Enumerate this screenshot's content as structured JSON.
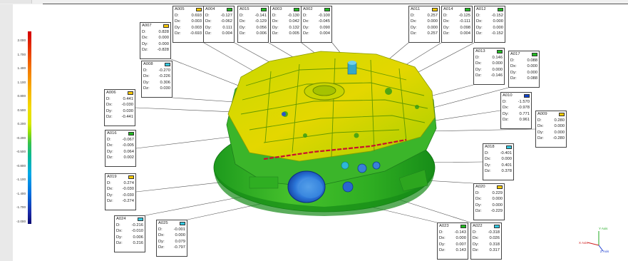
{
  "color_scale": {
    "ticks": [
      "2.000",
      "1.700",
      "1.400",
      "1.100",
      "0.800",
      "0.500",
      "0.200",
      "-0.200",
      "-0.500",
      "-0.800",
      "-1.100",
      "-1.400",
      "-1.700",
      "-2.000"
    ],
    "colors": [
      "#d40000",
      "#f47a00",
      "#f7b000",
      "#f2dc00",
      "#9be000",
      "#38c24a",
      "#00b7a0",
      "#00a8e8",
      "#0070e0",
      "#1b2aa8"
    ]
  },
  "callouts": [
    {
      "id": "A005",
      "color": "#f7c800",
      "rows": [
        [
          "D:",
          "0.693"
        ],
        [
          "Dx:",
          "0.003"
        ],
        [
          "Dy:",
          "0.003"
        ],
        [
          "Dz:",
          "-0.693"
        ]
      ]
    },
    {
      "id": "A004",
      "color": "#22bb22",
      "rows": [
        [
          "D:",
          "-0.127"
        ],
        [
          "Dx:",
          "-0.062"
        ],
        [
          "Dy:",
          "0.111"
        ],
        [
          "Dz:",
          "0.004"
        ]
      ]
    },
    {
      "id": "A015",
      "color": "#22bb22",
      "rows": [
        [
          "D:",
          "-0.141"
        ],
        [
          "Dx:",
          "-0.129"
        ],
        [
          "Dy:",
          "0.056"
        ],
        [
          "Dz:",
          "0.006"
        ]
      ]
    },
    {
      "id": "A003",
      "color": "#22bb22",
      "rows": [
        [
          "D:",
          "-0.130"
        ],
        [
          "Dx:",
          "0.042"
        ],
        [
          "Dy:",
          "0.132"
        ],
        [
          "Dz:",
          "0.005"
        ]
      ]
    },
    {
      "id": "A002",
      "color": "#22bb22",
      "rows": [
        [
          "D:",
          "-0.100"
        ],
        [
          "Dx:",
          "-0.045"
        ],
        [
          "Dy:",
          "0.090"
        ],
        [
          "Dz:",
          "0.004"
        ]
      ]
    },
    {
      "id": "A011",
      "color": "#f7c800",
      "rows": [
        [
          "D:",
          "0.257"
        ],
        [
          "Dx:",
          "0.000"
        ],
        [
          "Dy:",
          "0.000"
        ],
        [
          "Dz:",
          "0.257"
        ]
      ]
    },
    {
      "id": "A014",
      "color": "#22bb22",
      "rows": [
        [
          "D:",
          "-0.125"
        ],
        [
          "Dx:",
          "-0.111"
        ],
        [
          "Dy:",
          "0.098"
        ],
        [
          "Dz:",
          "0.004"
        ]
      ]
    },
    {
      "id": "A012",
      "color": "#22bb22",
      "rows": [
        [
          "D:",
          "-0.152"
        ],
        [
          "Dx:",
          "0.000"
        ],
        [
          "Dy:",
          "0.000"
        ],
        [
          "Dz:",
          "-0.152"
        ]
      ]
    },
    {
      "id": "A007",
      "color": "#f7c800",
      "rows": [
        [
          "D:",
          "0.828"
        ],
        [
          "Dx:",
          "0.000"
        ],
        [
          "Dy:",
          "0.000"
        ],
        [
          "Dz:",
          "-0.828"
        ]
      ]
    },
    {
      "id": "A008",
      "color": "#33c8e0",
      "rows": [
        [
          "D:",
          "-0.270"
        ],
        [
          "Dx:",
          "-0.226"
        ],
        [
          "Dy:",
          "0.306"
        ],
        [
          "Dz:",
          "0.030"
        ]
      ]
    },
    {
      "id": "A013",
      "color": "#22bb22",
      "rows": [
        [
          "D:",
          "0.146"
        ],
        [
          "Dx:",
          "0.000"
        ],
        [
          "Dy:",
          "0.000"
        ],
        [
          "Dz:",
          "-0.146"
        ]
      ]
    },
    {
      "id": "A017",
      "color": "#22bb22",
      "rows": [
        [
          "D:",
          "0.088"
        ],
        [
          "Dx:",
          "0.000"
        ],
        [
          "Dy:",
          "0.000"
        ],
        [
          "Dz:",
          "0.088"
        ]
      ]
    },
    {
      "id": "A006",
      "color": "#f7c800",
      "rows": [
        [
          "D:",
          "0.441"
        ],
        [
          "Dx:",
          "-0.030"
        ],
        [
          "Dy:",
          "0.030"
        ],
        [
          "Dz:",
          "-0.441"
        ]
      ]
    },
    {
      "id": "A010",
      "color": "#1144cc",
      "rows": [
        [
          "D:",
          "-1.570"
        ],
        [
          "Dx:",
          "-0.978"
        ],
        [
          "Dy:",
          "0.771"
        ],
        [
          "Dz:",
          "0.961"
        ]
      ]
    },
    {
      "id": "A009",
      "color": "#f7c800",
      "rows": [
        [
          "D:",
          "0.280"
        ],
        [
          "Dx:",
          "0.000"
        ],
        [
          "Dy:",
          "0.000"
        ],
        [
          "Dz:",
          "-0.280"
        ]
      ]
    },
    {
      "id": "A016",
      "color": "#22bb22",
      "rows": [
        [
          "D:",
          "-0.067"
        ],
        [
          "Dx:",
          "-0.005"
        ],
        [
          "Dy:",
          "0.064"
        ],
        [
          "Dz:",
          "0.002"
        ]
      ]
    },
    {
      "id": "A018",
      "color": "#33c8e0",
      "rows": [
        [
          "D:",
          "-0.401"
        ],
        [
          "Dx:",
          "0.000"
        ],
        [
          "Dy:",
          "0.401"
        ],
        [
          "Dz:",
          "0.378"
        ]
      ]
    },
    {
      "id": "A019",
      "color": "#f7c800",
      "rows": [
        [
          "D:",
          "0.274"
        ],
        [
          "Dx:",
          "-0.030"
        ],
        [
          "Dy:",
          "-0.030"
        ],
        [
          "Dz:",
          "-0.274"
        ]
      ]
    },
    {
      "id": "A020",
      "color": "#f7c800",
      "rows": [
        [
          "D:",
          "0.229"
        ],
        [
          "Dx:",
          "0.000"
        ],
        [
          "Dy:",
          "0.000"
        ],
        [
          "Dz:",
          "-0.229"
        ]
      ]
    },
    {
      "id": "A024",
      "color": "#33c8e0",
      "rows": [
        [
          "D:",
          "-0.216"
        ],
        [
          "Dx:",
          "-0.010"
        ],
        [
          "Dy:",
          "0.006"
        ],
        [
          "Dz:",
          "0.216"
        ]
      ]
    },
    {
      "id": "A025",
      "color": "#33c8e0",
      "rows": [
        [
          "D:",
          "-0.001"
        ],
        [
          "Dx:",
          "0.000"
        ],
        [
          "Dy:",
          "0.079"
        ],
        [
          "Dz:",
          "-0.797"
        ]
      ]
    },
    {
      "id": "A023",
      "color": "#22bb22",
      "rows": [
        [
          "D:",
          "-0.143"
        ],
        [
          "Dx:",
          "0.000"
        ],
        [
          "Dy:",
          "0.007"
        ],
        [
          "Dz:",
          "0.143"
        ]
      ]
    },
    {
      "id": "A022",
      "color": "#33c8e0",
      "rows": [
        [
          "D:",
          "-0.318"
        ],
        [
          "Dx:",
          "0.026"
        ],
        [
          "Dy:",
          "0.318"
        ],
        [
          "Dz:",
          "0.317"
        ]
      ]
    }
  ],
  "triad": {
    "y": "Y Axis",
    "x": "X Axis",
    "z": "Z Axis"
  }
}
